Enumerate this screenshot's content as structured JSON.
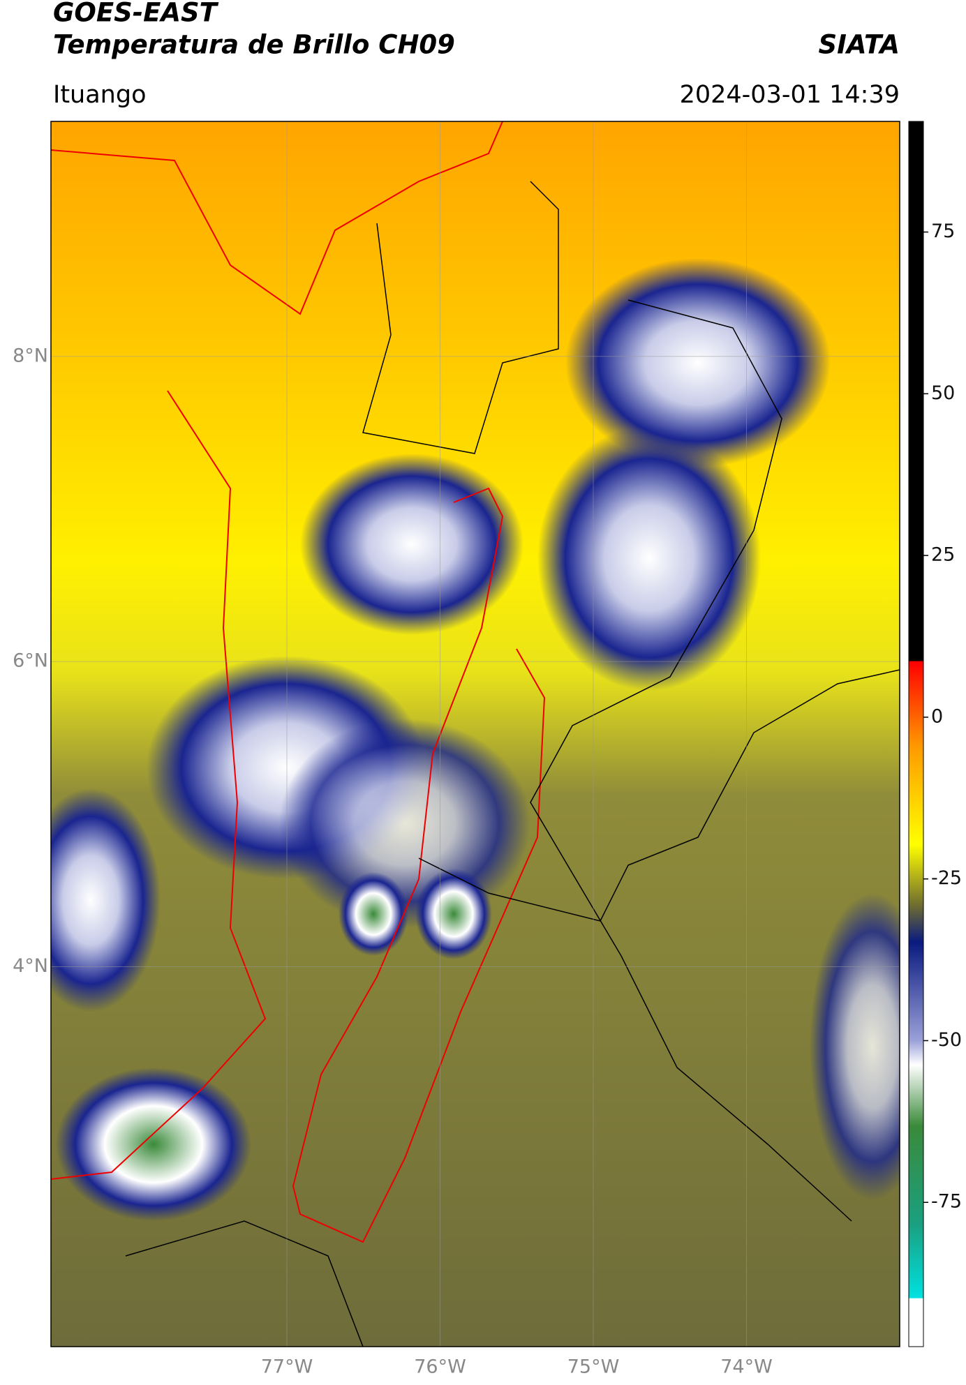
{
  "chart_data": {
    "type": "map",
    "title": "GOES-EAST",
    "subtitle": "Temperatura de Brillo CH09",
    "source": "SIATA",
    "location": "Ituango",
    "datetime": "2024-03-01 14:39",
    "xlim": [
      -78.54,
      -73.0
    ],
    "ylim": [
      1.51,
      9.54
    ],
    "xticks": [
      {
        "value": -77,
        "label": "77°W"
      },
      {
        "value": -76,
        "label": "76°W"
      },
      {
        "value": -75,
        "label": "75°W"
      },
      {
        "value": -74,
        "label": "74°W"
      }
    ],
    "yticks": [
      {
        "value": 4,
        "label": "4°N"
      },
      {
        "value": 6,
        "label": "6°N"
      },
      {
        "value": 8,
        "label": "8°N"
      }
    ],
    "grid": true,
    "colorbar": {
      "lim": [
        -97.3,
        92.1
      ],
      "ticks": [
        -75,
        -50,
        -25,
        0,
        25,
        50,
        75
      ]
    }
  }
}
